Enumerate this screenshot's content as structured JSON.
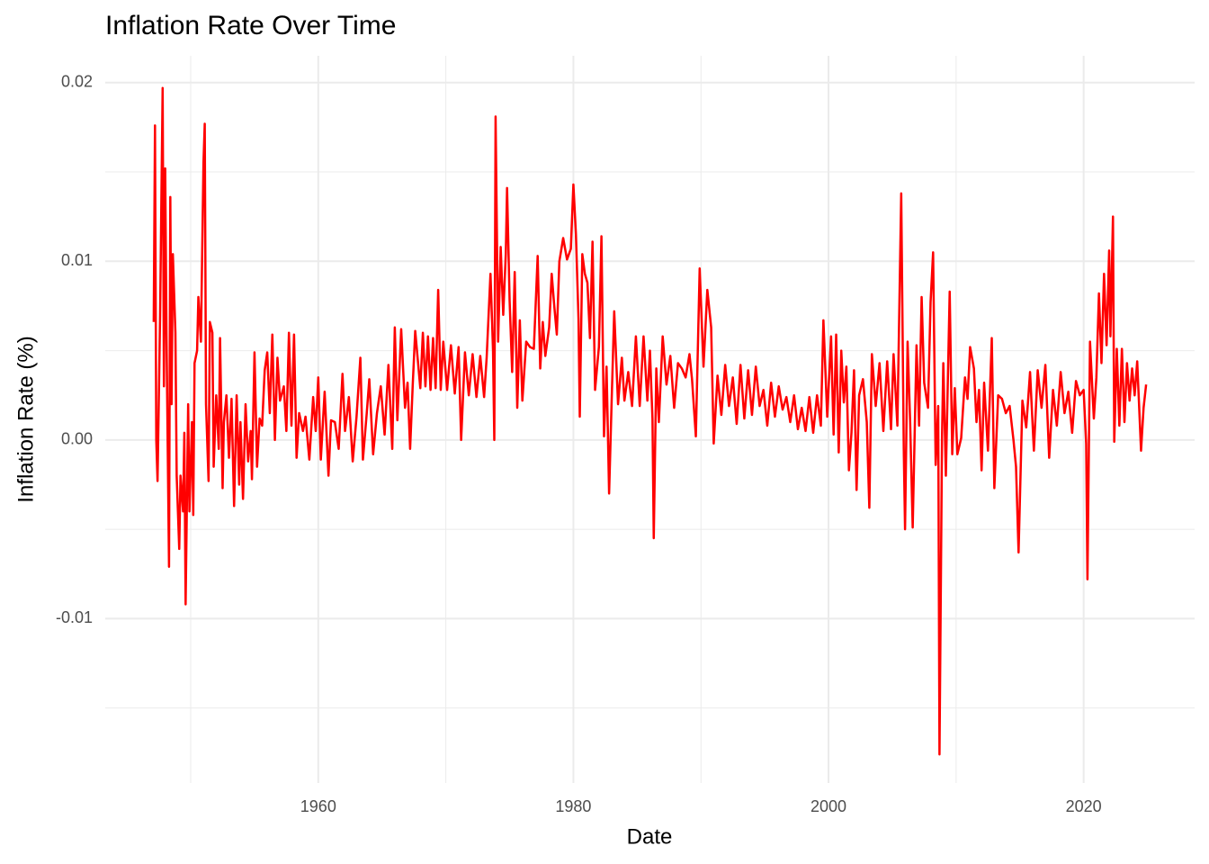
{
  "chart_data": {
    "type": "line",
    "title": "Inflation Rate Over Time",
    "x_label": "Date",
    "y_label": "Inflation Rate (%)",
    "xlim": [
      1943.3,
      2028.7
    ],
    "ylim": [
      -0.0192,
      0.0215
    ],
    "xticks": [
      1960,
      1980,
      2000,
      2020
    ],
    "minor_xticks": [
      1950,
      1970,
      1990,
      2010
    ],
    "yticks": [
      -0.01,
      {
        "value": 0,
        "label": "0.00"
      },
      0.01,
      0.02
    ],
    "minor_yticks": [
      -0.015,
      -0.005,
      0.005,
      0.015
    ],
    "grid": true,
    "series": [
      {
        "name": "Inflation Rate",
        "color": "#ff0000",
        "x": [
          1947.1,
          1947.2,
          1947.3,
          1947.4,
          1947.6,
          1947.8,
          1947.9,
          1948.0,
          1948.1,
          1948.3,
          1948.4,
          1948.5,
          1948.6,
          1948.8,
          1948.9,
          1949.1,
          1949.2,
          1949.4,
          1949.5,
          1949.6,
          1949.8,
          1949.9,
          1950.1,
          1950.2,
          1950.3,
          1950.5,
          1950.6,
          1950.8,
          1951.0,
          1951.1,
          1951.2,
          1951.4,
          1951.5,
          1951.7,
          1951.8,
          1952.0,
          1952.2,
          1952.3,
          1952.5,
          1952.6,
          1952.8,
          1953.0,
          1953.2,
          1953.4,
          1953.6,
          1953.8,
          1953.9,
          1954.1,
          1954.3,
          1954.5,
          1954.7,
          1954.8,
          1955.0,
          1955.2,
          1955.4,
          1955.6,
          1955.8,
          1956.0,
          1956.2,
          1956.4,
          1956.6,
          1956.8,
          1957.0,
          1957.3,
          1957.5,
          1957.7,
          1957.9,
          1958.1,
          1958.3,
          1958.5,
          1958.8,
          1959.0,
          1959.3,
          1959.6,
          1959.8,
          1960.0,
          1960.2,
          1960.5,
          1960.8,
          1961.0,
          1961.3,
          1961.6,
          1961.9,
          1962.1,
          1962.4,
          1962.7,
          1963.0,
          1963.3,
          1963.5,
          1963.8,
          1964.0,
          1964.3,
          1964.6,
          1964.9,
          1965.2,
          1965.5,
          1965.8,
          1966.0,
          1966.2,
          1966.5,
          1966.8,
          1967.0,
          1967.2,
          1967.4,
          1967.6,
          1968.0,
          1968.2,
          1968.4,
          1968.6,
          1968.8,
          1969.0,
          1969.2,
          1969.4,
          1969.6,
          1969.8,
          1970.1,
          1970.4,
          1970.7,
          1971.0,
          1971.2,
          1971.5,
          1971.8,
          1972.1,
          1972.4,
          1972.7,
          1973.0,
          1973.2,
          1973.5,
          1973.7,
          1973.8,
          1973.9,
          1974.1,
          1974.3,
          1974.5,
          1974.7,
          1974.8,
          1975.0,
          1975.2,
          1975.4,
          1975.6,
          1975.8,
          1976.0,
          1976.3,
          1976.6,
          1976.9,
          1977.2,
          1977.4,
          1977.6,
          1977.8,
          1978.1,
          1978.3,
          1978.5,
          1978.7,
          1978.9,
          1979.2,
          1979.5,
          1979.8,
          1980.0,
          1980.2,
          1980.4,
          1980.5,
          1980.7,
          1980.9,
          1981.1,
          1981.3,
          1981.5,
          1981.7,
          1982.0,
          1982.2,
          1982.4,
          1982.6,
          1982.8,
          1983.0,
          1983.2,
          1983.5,
          1983.8,
          1984.0,
          1984.3,
          1984.6,
          1984.9,
          1985.2,
          1985.5,
          1985.8,
          1986.0,
          1986.2,
          1986.3,
          1986.5,
          1986.7,
          1987.0,
          1987.3,
          1987.6,
          1987.9,
          1988.2,
          1988.5,
          1988.8,
          1989.1,
          1989.3,
          1989.6,
          1989.9,
          1990.2,
          1990.5,
          1990.8,
          1991.0,
          1991.3,
          1991.6,
          1991.9,
          1992.2,
          1992.5,
          1992.8,
          1993.1,
          1993.4,
          1993.7,
          1994.0,
          1994.3,
          1994.6,
          1994.9,
          1995.2,
          1995.5,
          1995.8,
          1996.1,
          1996.4,
          1996.7,
          1997.0,
          1997.3,
          1997.6,
          1997.9,
          1998.2,
          1998.5,
          1998.8,
          1999.1,
          1999.4,
          1999.6,
          1999.9,
          2000.2,
          2000.4,
          2000.6,
          2000.8,
          2001.0,
          2001.2,
          2001.4,
          2001.6,
          2001.8,
          2002.0,
          2002.2,
          2002.4,
          2002.7,
          2003.0,
          2003.2,
          2003.4,
          2003.7,
          2004.0,
          2004.3,
          2004.6,
          2004.9,
          2005.1,
          2005.4,
          2005.7,
          2005.9,
          2006.0,
          2006.2,
          2006.4,
          2006.6,
          2006.9,
          2007.1,
          2007.3,
          2007.5,
          2007.8,
          2008.0,
          2008.2,
          2008.4,
          2008.6,
          2008.7,
          2008.9,
          2009.0,
          2009.2,
          2009.5,
          2009.7,
          2009.9,
          2010.1,
          2010.4,
          2010.7,
          2010.9,
          2011.1,
          2011.4,
          2011.6,
          2011.8,
          2012.0,
          2012.2,
          2012.5,
          2012.8,
          2013.0,
          2013.3,
          2013.6,
          2013.9,
          2014.2,
          2014.5,
          2014.7,
          2014.9,
          2015.2,
          2015.5,
          2015.8,
          2016.1,
          2016.4,
          2016.7,
          2017.0,
          2017.3,
          2017.6,
          2017.9,
          2018.2,
          2018.5,
          2018.8,
          2019.1,
          2019.4,
          2019.7,
          2020.0,
          2020.2,
          2020.3,
          2020.5,
          2020.8,
          2021.0,
          2021.2,
          2021.4,
          2021.6,
          2021.8,
          2022.0,
          2022.1,
          2022.3,
          2022.4,
          2022.6,
          2022.8,
          2023.0,
          2023.2,
          2023.4,
          2023.6,
          2023.8,
          2024.0,
          2024.2,
          2024.5,
          2024.7,
          2024.9
        ],
        "values": [
          0.0066,
          0.0176,
          0.0,
          -0.0023,
          0.007,
          0.0197,
          0.003,
          0.0152,
          0.006,
          -0.0071,
          0.0136,
          0.002,
          0.0104,
          0.006,
          -0.002,
          -0.0061,
          -0.002,
          -0.004,
          0.0004,
          -0.0092,
          0.002,
          -0.004,
          0.001,
          -0.0042,
          0.0043,
          0.005,
          0.008,
          0.0055,
          0.0155,
          0.0177,
          0.002,
          -0.0023,
          0.0066,
          0.006,
          -0.0015,
          0.0025,
          -0.0005,
          0.0057,
          -0.0027,
          0.001,
          0.0025,
          -0.001,
          0.0023,
          -0.0037,
          0.0025,
          -0.0025,
          0.001,
          -0.0033,
          0.002,
          -0.0012,
          0.0005,
          -0.0022,
          0.0049,
          -0.0015,
          0.0012,
          0.0008,
          0.0039,
          0.0049,
          0.0015,
          0.0059,
          0.0,
          0.0046,
          0.0022,
          0.003,
          0.0005,
          0.006,
          0.0008,
          0.0059,
          -0.001,
          0.0015,
          0.0005,
          0.0013,
          -0.0011,
          0.0024,
          0.0005,
          0.0035,
          -0.0011,
          0.0027,
          -0.002,
          0.0011,
          0.001,
          -0.0005,
          0.0037,
          0.0005,
          0.0024,
          -0.0012,
          0.0013,
          0.0046,
          -0.0011,
          0.0015,
          0.0034,
          -0.0008,
          0.0015,
          0.003,
          0.0003,
          0.0042,
          -0.0005,
          0.0063,
          0.0011,
          0.0062,
          0.0018,
          0.0032,
          -0.0005,
          0.003,
          0.0061,
          0.0029,
          0.006,
          0.003,
          0.0058,
          0.0028,
          0.0057,
          0.0029,
          0.0084,
          0.0028,
          0.0055,
          0.0028,
          0.0053,
          0.0026,
          0.0052,
          0.0,
          0.0049,
          0.0025,
          0.0048,
          0.0024,
          0.0047,
          0.0024,
          0.0046,
          0.0093,
          0.005,
          0.0,
          0.0181,
          0.0055,
          0.0108,
          0.007,
          0.0104,
          0.0141,
          0.0078,
          0.0038,
          0.0094,
          0.0018,
          0.0067,
          0.0022,
          0.0055,
          0.0052,
          0.0051,
          0.0103,
          0.004,
          0.0066,
          0.0047,
          0.0063,
          0.0093,
          0.0075,
          0.0059,
          0.01,
          0.0113,
          0.0101,
          0.0107,
          0.0143,
          0.0115,
          0.0068,
          0.0013,
          0.0104,
          0.0093,
          0.0088,
          0.0057,
          0.0111,
          0.0028,
          0.0052,
          0.0114,
          0.0002,
          0.0041,
          -0.003,
          0.0022,
          0.0072,
          0.002,
          0.0046,
          0.0022,
          0.0038,
          0.0019,
          0.0058,
          0.0019,
          0.0058,
          0.0022,
          0.005,
          0.0012,
          -0.0055,
          0.004,
          0.001,
          0.0058,
          0.0031,
          0.0047,
          0.0018,
          0.0043,
          0.004,
          0.0035,
          0.0048,
          0.0034,
          0.0002,
          0.0096,
          0.0041,
          0.0084,
          0.0063,
          -0.0002,
          0.0036,
          0.0014,
          0.0042,
          0.0019,
          0.0035,
          0.0009,
          0.0042,
          0.0012,
          0.0039,
          0.0014,
          0.0041,
          0.0019,
          0.0028,
          0.0008,
          0.0032,
          0.0013,
          0.003,
          0.0017,
          0.0024,
          0.001,
          0.0025,
          0.0006,
          0.0018,
          0.0005,
          0.0024,
          0.0004,
          0.0025,
          0.0008,
          0.0067,
          0.0013,
          0.0058,
          0.0003,
          0.0059,
          -0.0007,
          0.005,
          0.0021,
          0.0041,
          -0.0017,
          0.0004,
          0.0039,
          -0.0028,
          0.0025,
          0.0034,
          0.001,
          -0.0038,
          0.0048,
          0.0019,
          0.0043,
          0.0005,
          0.0044,
          0.0006,
          0.0048,
          0.0008,
          0.0138,
          -0.0005,
          -0.005,
          0.0055,
          0.001,
          -0.0049,
          0.0053,
          0.0008,
          0.008,
          0.0032,
          0.0018,
          0.0077,
          0.0105,
          -0.0014,
          0.0019,
          -0.0176,
          0.0002,
          0.0043,
          -0.002,
          0.0083,
          -0.0008,
          0.0029,
          -0.0008,
          0.0001,
          0.0035,
          0.0023,
          0.0052,
          0.004,
          0.001,
          0.0028,
          -0.0017,
          0.0032,
          -0.0006,
          0.0057,
          -0.0027,
          0.0025,
          0.0023,
          0.0015,
          0.0019,
          0.0,
          -0.0015,
          -0.0063,
          0.0022,
          0.0007,
          0.0038,
          -0.0006,
          0.0039,
          0.0018,
          0.0042,
          -0.001,
          0.0028,
          0.0008,
          0.0038,
          0.0015,
          0.0027,
          0.0004,
          0.0033,
          0.0025,
          0.0028,
          -0.0002,
          -0.0078,
          0.0055,
          0.0012,
          0.0035,
          0.0082,
          0.0043,
          0.0093,
          0.0053,
          0.0106,
          0.0058,
          0.0125,
          -0.0001,
          0.0051,
          0.0008,
          0.0051,
          0.001,
          0.0043,
          0.0022,
          0.004,
          0.0025,
          0.0044,
          -0.0006,
          0.0018,
          0.0031
        ]
      }
    ]
  }
}
